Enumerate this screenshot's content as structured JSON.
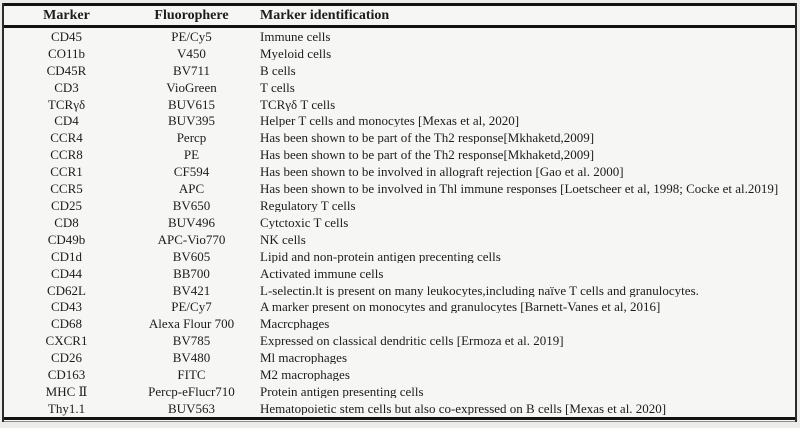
{
  "table": {
    "headers": [
      "Marker",
      "Fluorophere",
      "Marker identification"
    ],
    "rows": [
      {
        "marker": "CD45",
        "fluorophore": "PE/Cy5",
        "identification": "Immune cells"
      },
      {
        "marker": "CO11b",
        "fluorophore": "V450",
        "identification": "Myeloid cells"
      },
      {
        "marker": "CD45R",
        "fluorophore": "BV711",
        "identification": "B cells"
      },
      {
        "marker": "CD3",
        "fluorophore": "VioGreen",
        "identification": "T cells"
      },
      {
        "marker": "TCRγδ",
        "fluorophore": "BUV615",
        "identification": "TCRγδ T cells"
      },
      {
        "marker": "CD4",
        "fluorophore": "BUV395",
        "identification": "Helper T cells and monocytes [Mexas et al, 2020]"
      },
      {
        "marker": "CCR4",
        "fluorophore": "Percp",
        "identification": "Has been shown to be part of the Th2 response[Mkhaketd,2009]"
      },
      {
        "marker": "CCR8",
        "fluorophore": "PE",
        "identification": "Has been shown to be part of the Th2 response[Mkhaketd,2009]"
      },
      {
        "marker": "CCR1",
        "fluorophore": "CF594",
        "identification": "Has been shown to be involved in allograft rejection [Gao et al. 2000]"
      },
      {
        "marker": "CCR5",
        "fluorophore": "APC",
        "identification": "Has been shown to be involved in Thl immune responses [Loetscheer et al, 1998; Cocke et al.2019]"
      },
      {
        "marker": "CD25",
        "fluorophore": "BV650",
        "identification": "Regulatory T cells"
      },
      {
        "marker": "CD8",
        "fluorophore": "BUV496",
        "identification": "Cytctoxic T cells"
      },
      {
        "marker": "CD49b",
        "fluorophore": "APC-Vio770",
        "identification": "NK cells"
      },
      {
        "marker": "CD1d",
        "fluorophore": "BV605",
        "identification": "Lipid and non-protein antigen precenting cells"
      },
      {
        "marker": "CD44",
        "fluorophore": "BB700",
        "identification": "Activated immune cells"
      },
      {
        "marker": "CD62L",
        "fluorophore": "BV421",
        "identification": "L-selectin.lt is present on many leukocytes,including naïve T cells and granulocytes."
      },
      {
        "marker": "CD43",
        "fluorophore": "PE/Cy7",
        "identification": "A marker present on monocytes and granulocytes [Barnett-Vanes et al, 2016]"
      },
      {
        "marker": "CD68",
        "fluorophore": "Alexa Flour 700",
        "identification": "Macrcphages"
      },
      {
        "marker": "CXCR1",
        "fluorophore": "BV785",
        "identification": "Expressed on classical dendritic cells [Ermoza et al. 2019]"
      },
      {
        "marker": "CD26",
        "fluorophore": "BV480",
        "identification": "Ml macrophages"
      },
      {
        "marker": "CD163",
        "fluorophore": "FITC",
        "identification": "M2 macrophages"
      },
      {
        "marker": "MHC Ⅱ",
        "fluorophore": "Percp-eFlucr710",
        "identification": "Protein antigen presenting cells"
      },
      {
        "marker": "Thy1.1",
        "fluorophore": "BUV563",
        "identification": "Hematopoietic stem cells but also co-expressed on B cells [Mexas et al. 2020]"
      }
    ]
  }
}
